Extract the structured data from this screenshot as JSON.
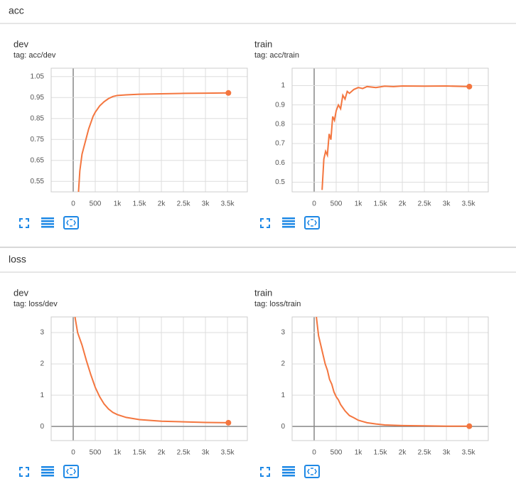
{
  "sections": [
    {
      "title": "acc",
      "charts": [
        {
          "type": "line",
          "title": "dev",
          "tag": "tag: acc/dev",
          "x": [
            120,
            150,
            200,
            250,
            300,
            350,
            400,
            450,
            500,
            600,
            700,
            800,
            900,
            1000,
            1200,
            1500,
            2000,
            2500,
            3000,
            3520
          ],
          "series": [
            {
              "color": "#f4763f",
              "values": [
                0.5,
                0.6,
                0.68,
                0.72,
                0.76,
                0.8,
                0.83,
                0.86,
                0.88,
                0.91,
                0.93,
                0.945,
                0.955,
                0.96,
                0.963,
                0.966,
                0.968,
                0.97,
                0.971,
                0.972
              ]
            }
          ],
          "xlim": [
            -500,
            3950
          ],
          "xticks": [
            0,
            500,
            {
              "value": 1000,
              "label": "1k"
            },
            {
              "value": 1500,
              "label": "1.5k"
            },
            {
              "value": 2000,
              "label": "2k"
            },
            {
              "value": 2500,
              "label": "2.5k"
            },
            {
              "value": 3000,
              "label": "3k"
            },
            {
              "value": 3500,
              "label": "3.5k"
            }
          ],
          "ylim": [
            0.5,
            1.09
          ],
          "yticks": [
            0.55,
            0.65,
            0.75,
            0.85,
            0.95,
            1.05
          ],
          "grid": true
        },
        {
          "type": "line",
          "title": "train",
          "tag": "tag: acc/train",
          "x": [
            180,
            220,
            260,
            300,
            340,
            380,
            420,
            460,
            500,
            550,
            600,
            650,
            700,
            750,
            800,
            900,
            1000,
            1100,
            1200,
            1400,
            1600,
            1800,
            2000,
            2500,
            3000,
            3520
          ],
          "series": [
            {
              "color": "#f4763f",
              "values": [
                0.46,
                0.62,
                0.66,
                0.64,
                0.75,
                0.72,
                0.84,
                0.82,
                0.87,
                0.9,
                0.88,
                0.95,
                0.93,
                0.97,
                0.96,
                0.98,
                0.99,
                0.985,
                0.995,
                0.99,
                0.997,
                0.995,
                0.998,
                0.997,
                0.998,
                0.995
              ]
            }
          ],
          "xlim": [
            -500,
            3950
          ],
          "xticks": [
            0,
            500,
            {
              "value": 1000,
              "label": "1k"
            },
            {
              "value": 1500,
              "label": "1.5k"
            },
            {
              "value": 2000,
              "label": "2k"
            },
            {
              "value": 2500,
              "label": "2.5k"
            },
            {
              "value": 3000,
              "label": "3k"
            },
            {
              "value": 3500,
              "label": "3.5k"
            }
          ],
          "ylim": [
            0.45,
            1.09
          ],
          "yticks": [
            0.5,
            0.6,
            0.7,
            0.8,
            0.9,
            1
          ],
          "grid": true
        }
      ]
    },
    {
      "title": "loss",
      "charts": [
        {
          "type": "line",
          "title": "dev",
          "tag": "tag: loss/dev",
          "x": [
            40,
            100,
            200,
            300,
            400,
            500,
            600,
            700,
            800,
            900,
            1000,
            1200,
            1500,
            2000,
            2500,
            3000,
            3520
          ],
          "series": [
            {
              "color": "#f4763f",
              "values": [
                3.5,
                3.0,
                2.6,
                2.1,
                1.65,
                1.25,
                0.95,
                0.72,
                0.56,
                0.45,
                0.38,
                0.29,
                0.22,
                0.17,
                0.15,
                0.13,
                0.12
              ]
            }
          ],
          "xlim": [
            -500,
            3950
          ],
          "xticks": [
            0,
            500,
            {
              "value": 1000,
              "label": "1k"
            },
            {
              "value": 1500,
              "label": "1.5k"
            },
            {
              "value": 2000,
              "label": "2k"
            },
            {
              "value": 2500,
              "label": "2.5k"
            },
            {
              "value": 3000,
              "label": "3k"
            },
            {
              "value": 3500,
              "label": "3.5k"
            }
          ],
          "ylim": [
            -0.45,
            3.5
          ],
          "yticks": [
            0,
            1,
            2,
            3
          ],
          "grid": true
        },
        {
          "type": "line",
          "title": "train",
          "tag": "tag: loss/train",
          "x": [
            50,
            100,
            150,
            200,
            250,
            300,
            350,
            400,
            450,
            500,
            550,
            600,
            700,
            800,
            900,
            1000,
            1200,
            1400,
            1600,
            2000,
            2500,
            3000,
            3520
          ],
          "series": [
            {
              "color": "#f4763f",
              "values": [
                3.5,
                2.9,
                2.6,
                2.3,
                2.0,
                1.8,
                1.5,
                1.35,
                1.1,
                0.95,
                0.85,
                0.7,
                0.5,
                0.35,
                0.28,
                0.2,
                0.12,
                0.08,
                0.05,
                0.03,
                0.02,
                0.01,
                0.01
              ]
            }
          ],
          "xlim": [
            -500,
            3950
          ],
          "xticks": [
            0,
            500,
            {
              "value": 1000,
              "label": "1k"
            },
            {
              "value": 1500,
              "label": "1.5k"
            },
            {
              "value": 2000,
              "label": "2k"
            },
            {
              "value": 2500,
              "label": "2.5k"
            },
            {
              "value": 3000,
              "label": "3k"
            },
            {
              "value": 3500,
              "label": "3.5k"
            }
          ],
          "ylim": [
            -0.45,
            3.5
          ],
          "yticks": [
            0,
            1,
            2,
            3
          ],
          "grid": true
        }
      ]
    }
  ]
}
